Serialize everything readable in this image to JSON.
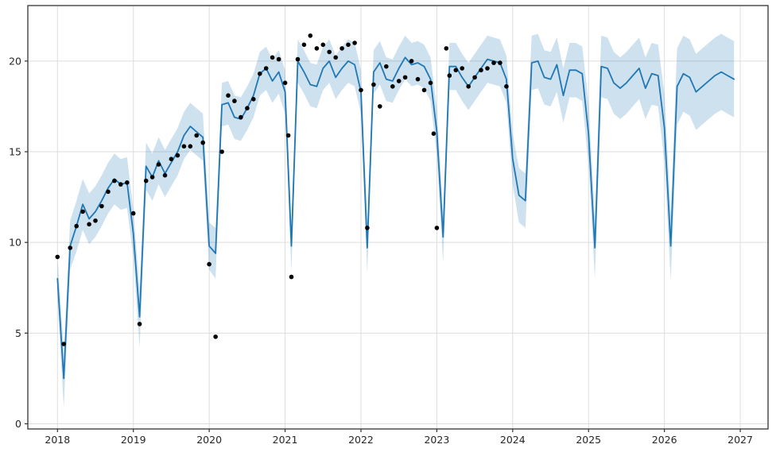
{
  "window": {
    "kind": "matplotlib-figure",
    "title": "",
    "background": "#ffffff"
  },
  "colors": {
    "forecast_line": "#1f77b4",
    "confidence_band": "#1f77b4",
    "band_opacity": 0.22,
    "observation_dot": "#000000",
    "grid": "#dddddd",
    "spine": "#333333",
    "tick_label": "#262626",
    "background": "#ffffff"
  },
  "chart_data": {
    "type": "line",
    "title": "",
    "subtitle": "",
    "xlabel": "",
    "ylabel": "",
    "grid": true,
    "legend": "none",
    "xlim": [
      2017.609,
      2027.366
    ],
    "ylim": [
      -0.285,
      23.06
    ],
    "x_tick_labels": [
      "2018",
      "2019",
      "2020",
      "2021",
      "2022",
      "2023",
      "2024",
      "2025",
      "2026",
      "2027"
    ],
    "x_tick_values": [
      2018,
      2019,
      2020,
      2021,
      2022,
      2023,
      2024,
      2025,
      2026,
      2027
    ],
    "y_tick_labels": [
      "0",
      "5",
      "10",
      "15",
      "20"
    ],
    "y_tick_values": [
      0,
      5,
      10,
      15,
      20
    ],
    "series": [
      {
        "name": "forecast-with-interval",
        "kind": "line-band",
        "color": "#1f77b4",
        "points": [
          [
            2018.0,
            8.0,
            6.8,
            9.2
          ],
          [
            2018.083,
            2.5,
            0.9,
            4.0
          ],
          [
            2018.167,
            9.8,
            8.5,
            11.2
          ],
          [
            2018.25,
            10.9,
            9.5,
            12.3
          ],
          [
            2018.333,
            12.1,
            10.7,
            13.5
          ],
          [
            2018.417,
            11.3,
            9.9,
            12.7
          ],
          [
            2018.5,
            11.7,
            10.3,
            13.1
          ],
          [
            2018.583,
            12.3,
            10.9,
            13.7
          ],
          [
            2018.667,
            13.0,
            11.6,
            14.4
          ],
          [
            2018.75,
            13.5,
            12.1,
            14.9
          ],
          [
            2018.833,
            13.2,
            11.8,
            14.6
          ],
          [
            2018.917,
            13.3,
            11.9,
            14.7
          ],
          [
            2019.0,
            10.5,
            9.2,
            11.8
          ],
          [
            2019.083,
            5.9,
            4.2,
            7.4
          ],
          [
            2019.167,
            14.2,
            12.9,
            15.5
          ],
          [
            2019.25,
            13.6,
            12.3,
            14.9
          ],
          [
            2019.333,
            14.5,
            13.2,
            15.8
          ],
          [
            2019.417,
            13.8,
            12.5,
            15.1
          ],
          [
            2019.5,
            14.4,
            13.1,
            15.7
          ],
          [
            2019.583,
            15.0,
            13.7,
            16.3
          ],
          [
            2019.667,
            15.9,
            14.6,
            17.2
          ],
          [
            2019.75,
            16.4,
            15.1,
            17.7
          ],
          [
            2019.833,
            16.1,
            14.8,
            17.4
          ],
          [
            2019.917,
            15.8,
            14.5,
            17.1
          ],
          [
            2020.0,
            9.8,
            8.5,
            11.1
          ],
          [
            2020.083,
            9.4,
            8.0,
            10.8
          ],
          [
            2020.167,
            17.6,
            16.4,
            18.8
          ],
          [
            2020.25,
            17.7,
            16.5,
            18.9
          ],
          [
            2020.333,
            16.9,
            15.7,
            18.1
          ],
          [
            2020.417,
            16.8,
            15.6,
            18.0
          ],
          [
            2020.5,
            17.4,
            16.2,
            18.6
          ],
          [
            2020.583,
            18.1,
            16.9,
            19.3
          ],
          [
            2020.667,
            19.3,
            18.1,
            20.5
          ],
          [
            2020.75,
            19.6,
            18.4,
            20.8
          ],
          [
            2020.833,
            18.9,
            17.7,
            20.1
          ],
          [
            2020.917,
            19.4,
            18.2,
            20.6
          ],
          [
            2021.0,
            18.3,
            17.1,
            19.5
          ],
          [
            2021.083,
            9.8,
            8.4,
            11.2
          ],
          [
            2021.167,
            20.0,
            18.8,
            21.2
          ],
          [
            2021.25,
            19.4,
            18.2,
            20.6
          ],
          [
            2021.333,
            18.7,
            17.5,
            19.9
          ],
          [
            2021.417,
            18.6,
            17.4,
            19.8
          ],
          [
            2021.5,
            19.6,
            18.4,
            20.8
          ],
          [
            2021.583,
            20.0,
            18.8,
            21.2
          ],
          [
            2021.667,
            19.1,
            17.9,
            20.3
          ],
          [
            2021.75,
            19.6,
            18.4,
            20.8
          ],
          [
            2021.833,
            20.0,
            18.8,
            21.2
          ],
          [
            2021.917,
            19.8,
            18.6,
            21.0
          ],
          [
            2022.0,
            18.3,
            17.1,
            19.5
          ],
          [
            2022.083,
            9.7,
            8.3,
            11.1
          ],
          [
            2022.167,
            19.4,
            18.2,
            20.6
          ],
          [
            2022.25,
            19.9,
            18.7,
            21.1
          ],
          [
            2022.333,
            19.0,
            17.8,
            20.2
          ],
          [
            2022.417,
            18.9,
            17.7,
            20.1
          ],
          [
            2022.5,
            19.6,
            18.4,
            20.8
          ],
          [
            2022.583,
            20.2,
            19.0,
            21.4
          ],
          [
            2022.667,
            19.8,
            18.6,
            21.0
          ],
          [
            2022.75,
            19.9,
            18.7,
            21.1
          ],
          [
            2022.833,
            19.7,
            18.5,
            20.9
          ],
          [
            2022.917,
            19.0,
            17.8,
            20.2
          ],
          [
            2023.0,
            16.1,
            14.8,
            17.4
          ],
          [
            2023.083,
            10.3,
            8.9,
            11.7
          ],
          [
            2023.167,
            19.7,
            18.4,
            21.0
          ],
          [
            2023.25,
            19.7,
            18.4,
            21.0
          ],
          [
            2023.333,
            19.1,
            17.8,
            20.4
          ],
          [
            2023.417,
            18.6,
            17.3,
            19.9
          ],
          [
            2023.5,
            19.1,
            17.8,
            20.4
          ],
          [
            2023.583,
            19.6,
            18.3,
            20.9
          ],
          [
            2023.667,
            20.1,
            18.8,
            21.4
          ],
          [
            2023.75,
            20.0,
            18.7,
            21.3
          ],
          [
            2023.833,
            19.9,
            18.6,
            21.2
          ],
          [
            2023.917,
            19.0,
            17.7,
            20.3
          ],
          [
            2024.0,
            14.6,
            13.2,
            16.0
          ],
          [
            2024.083,
            12.6,
            11.1,
            14.1
          ],
          [
            2024.167,
            12.3,
            10.8,
            13.8
          ],
          [
            2024.25,
            19.9,
            18.4,
            21.4
          ],
          [
            2024.333,
            20.0,
            18.5,
            21.5
          ],
          [
            2024.417,
            19.1,
            17.6,
            20.6
          ],
          [
            2024.5,
            19.0,
            17.5,
            20.5
          ],
          [
            2024.583,
            19.8,
            18.3,
            21.3
          ],
          [
            2024.667,
            18.1,
            16.6,
            19.6
          ],
          [
            2024.75,
            19.5,
            18.0,
            21.0
          ],
          [
            2024.833,
            19.5,
            18.0,
            21.0
          ],
          [
            2024.917,
            19.3,
            17.8,
            20.8
          ],
          [
            2025.0,
            16.0,
            14.3,
            17.7
          ],
          [
            2025.083,
            9.7,
            8.0,
            11.4
          ],
          [
            2025.167,
            19.7,
            18.0,
            21.4
          ],
          [
            2025.25,
            19.6,
            17.9,
            21.3
          ],
          [
            2025.333,
            18.8,
            17.1,
            20.5
          ],
          [
            2025.417,
            18.5,
            16.8,
            20.2
          ],
          [
            2025.5,
            18.8,
            17.1,
            20.5
          ],
          [
            2025.583,
            19.2,
            17.5,
            20.9
          ],
          [
            2025.667,
            19.6,
            17.9,
            21.3
          ],
          [
            2025.75,
            18.5,
            16.8,
            20.2
          ],
          [
            2025.833,
            19.3,
            17.6,
            21.0
          ],
          [
            2025.917,
            19.2,
            17.5,
            20.9
          ],
          [
            2026.0,
            16.3,
            14.4,
            18.2
          ],
          [
            2026.083,
            9.8,
            7.9,
            11.7
          ],
          [
            2026.167,
            18.6,
            16.5,
            20.7
          ],
          [
            2026.25,
            19.3,
            17.2,
            21.4
          ],
          [
            2026.333,
            19.1,
            17.0,
            21.2
          ],
          [
            2026.417,
            18.3,
            16.2,
            20.4
          ],
          [
            2026.5,
            18.6,
            16.5,
            20.7
          ],
          [
            2026.583,
            18.9,
            16.8,
            21.0
          ],
          [
            2026.667,
            19.2,
            17.1,
            21.3
          ],
          [
            2026.75,
            19.4,
            17.3,
            21.5
          ],
          [
            2026.833,
            19.2,
            17.1,
            21.3
          ],
          [
            2026.917,
            19.0,
            16.9,
            21.1
          ]
        ]
      },
      {
        "name": "observations",
        "kind": "scatter",
        "color": "#000000",
        "marker_radius": 2.8,
        "points": [
          [
            2018.0,
            9.2
          ],
          [
            2018.083,
            4.4
          ],
          [
            2018.167,
            9.7
          ],
          [
            2018.25,
            10.9
          ],
          [
            2018.333,
            11.7
          ],
          [
            2018.417,
            11.0
          ],
          [
            2018.5,
            11.2
          ],
          [
            2018.583,
            12.0
          ],
          [
            2018.667,
            12.8
          ],
          [
            2018.75,
            13.4
          ],
          [
            2018.833,
            13.2
          ],
          [
            2018.917,
            13.3
          ],
          [
            2019.0,
            11.6
          ],
          [
            2019.083,
            5.5
          ],
          [
            2019.167,
            13.4
          ],
          [
            2019.25,
            13.6
          ],
          [
            2019.333,
            14.3
          ],
          [
            2019.417,
            13.7
          ],
          [
            2019.5,
            14.6
          ],
          [
            2019.583,
            14.8
          ],
          [
            2019.667,
            15.3
          ],
          [
            2019.75,
            15.3
          ],
          [
            2019.833,
            15.9
          ],
          [
            2019.917,
            15.5
          ],
          [
            2020.0,
            8.8
          ],
          [
            2020.083,
            4.8
          ],
          [
            2020.167,
            15.0
          ],
          [
            2020.25,
            18.1
          ],
          [
            2020.333,
            17.8
          ],
          [
            2020.417,
            16.9
          ],
          [
            2020.5,
            17.4
          ],
          [
            2020.583,
            17.9
          ],
          [
            2020.667,
            19.3
          ],
          [
            2020.75,
            19.6
          ],
          [
            2020.833,
            20.2
          ],
          [
            2020.917,
            20.1
          ],
          [
            2021.0,
            18.8
          ],
          [
            2021.042,
            15.9
          ],
          [
            2021.083,
            8.1
          ],
          [
            2021.167,
            20.1
          ],
          [
            2021.25,
            20.9
          ],
          [
            2021.333,
            21.4
          ],
          [
            2021.417,
            20.7
          ],
          [
            2021.5,
            20.9
          ],
          [
            2021.583,
            20.5
          ],
          [
            2021.667,
            20.2
          ],
          [
            2021.75,
            20.7
          ],
          [
            2021.833,
            20.9
          ],
          [
            2021.917,
            21.0
          ],
          [
            2022.0,
            18.4
          ],
          [
            2022.083,
            10.8
          ],
          [
            2022.167,
            18.7
          ],
          [
            2022.25,
            17.5
          ],
          [
            2022.333,
            19.7
          ],
          [
            2022.417,
            18.6
          ],
          [
            2022.5,
            18.9
          ],
          [
            2022.583,
            19.1
          ],
          [
            2022.667,
            20.0
          ],
          [
            2022.75,
            19.0
          ],
          [
            2022.833,
            18.4
          ],
          [
            2022.917,
            18.8
          ],
          [
            2022.958,
            16.0
          ],
          [
            2023.0,
            10.8
          ],
          [
            2023.125,
            20.7
          ],
          [
            2023.167,
            19.2
          ],
          [
            2023.25,
            19.5
          ],
          [
            2023.333,
            19.6
          ],
          [
            2023.417,
            18.6
          ],
          [
            2023.5,
            19.1
          ],
          [
            2023.583,
            19.5
          ],
          [
            2023.667,
            19.6
          ],
          [
            2023.75,
            19.9
          ],
          [
            2023.833,
            19.9
          ],
          [
            2023.917,
            18.6
          ]
        ]
      }
    ]
  }
}
